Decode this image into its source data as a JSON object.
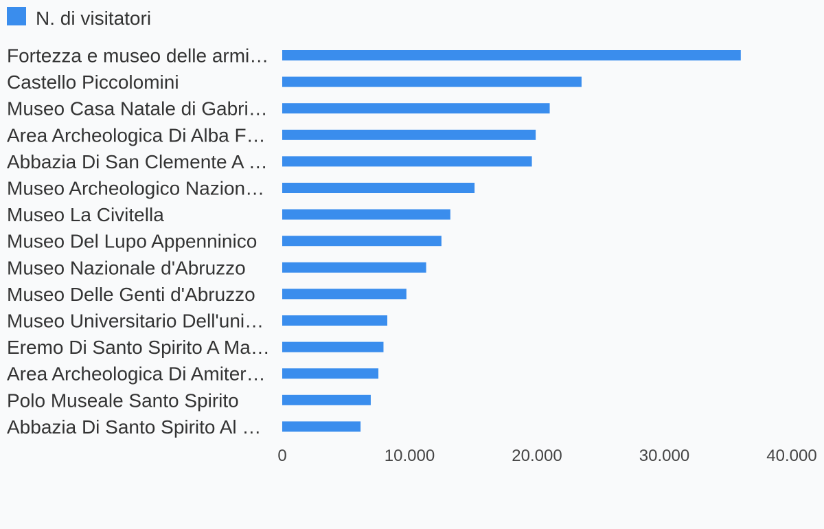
{
  "chart_data": {
    "type": "bar",
    "orientation": "horizontal",
    "legend": {
      "position": "top-left",
      "entries": [
        {
          "name": "N. di visitatori",
          "color": "#3a8ded"
        }
      ]
    },
    "series": [
      {
        "name": "N. di visitatori",
        "color": "#3a8ded",
        "values": [
          36000,
          23500,
          21000,
          19900,
          19600,
          15100,
          13200,
          12500,
          11300,
          9750,
          8250,
          7950,
          7550,
          6950,
          6150
        ]
      }
    ],
    "categories": [
      "Fortezza e museo delle armi…",
      "Castello Piccolomini",
      "Museo Casa Natale di Gabri…",
      "Area Archeologica Di Alba F…",
      "Abbazia Di San Clemente A …",
      "Museo Archeologico Nazion…",
      "Museo La Civitella",
      "Museo Del Lupo Appenninico",
      "Museo Nazionale d'Abruzzo",
      "Museo Delle Genti d'Abruzzo",
      "Museo Universitario Dell'uni…",
      "Eremo Di Santo Spirito A Ma…",
      "Area Archeologica Di Amiter…",
      "Polo Museale Santo Spirito",
      "Abbazia Di Santo Spirito Al …"
    ],
    "xlim": [
      0,
      40000
    ],
    "x_ticks": [
      0,
      10000,
      20000,
      30000,
      40000
    ],
    "x_tick_labels": [
      "0",
      "10.000",
      "20.000",
      "30.000",
      "40.000"
    ],
    "grid": false
  }
}
